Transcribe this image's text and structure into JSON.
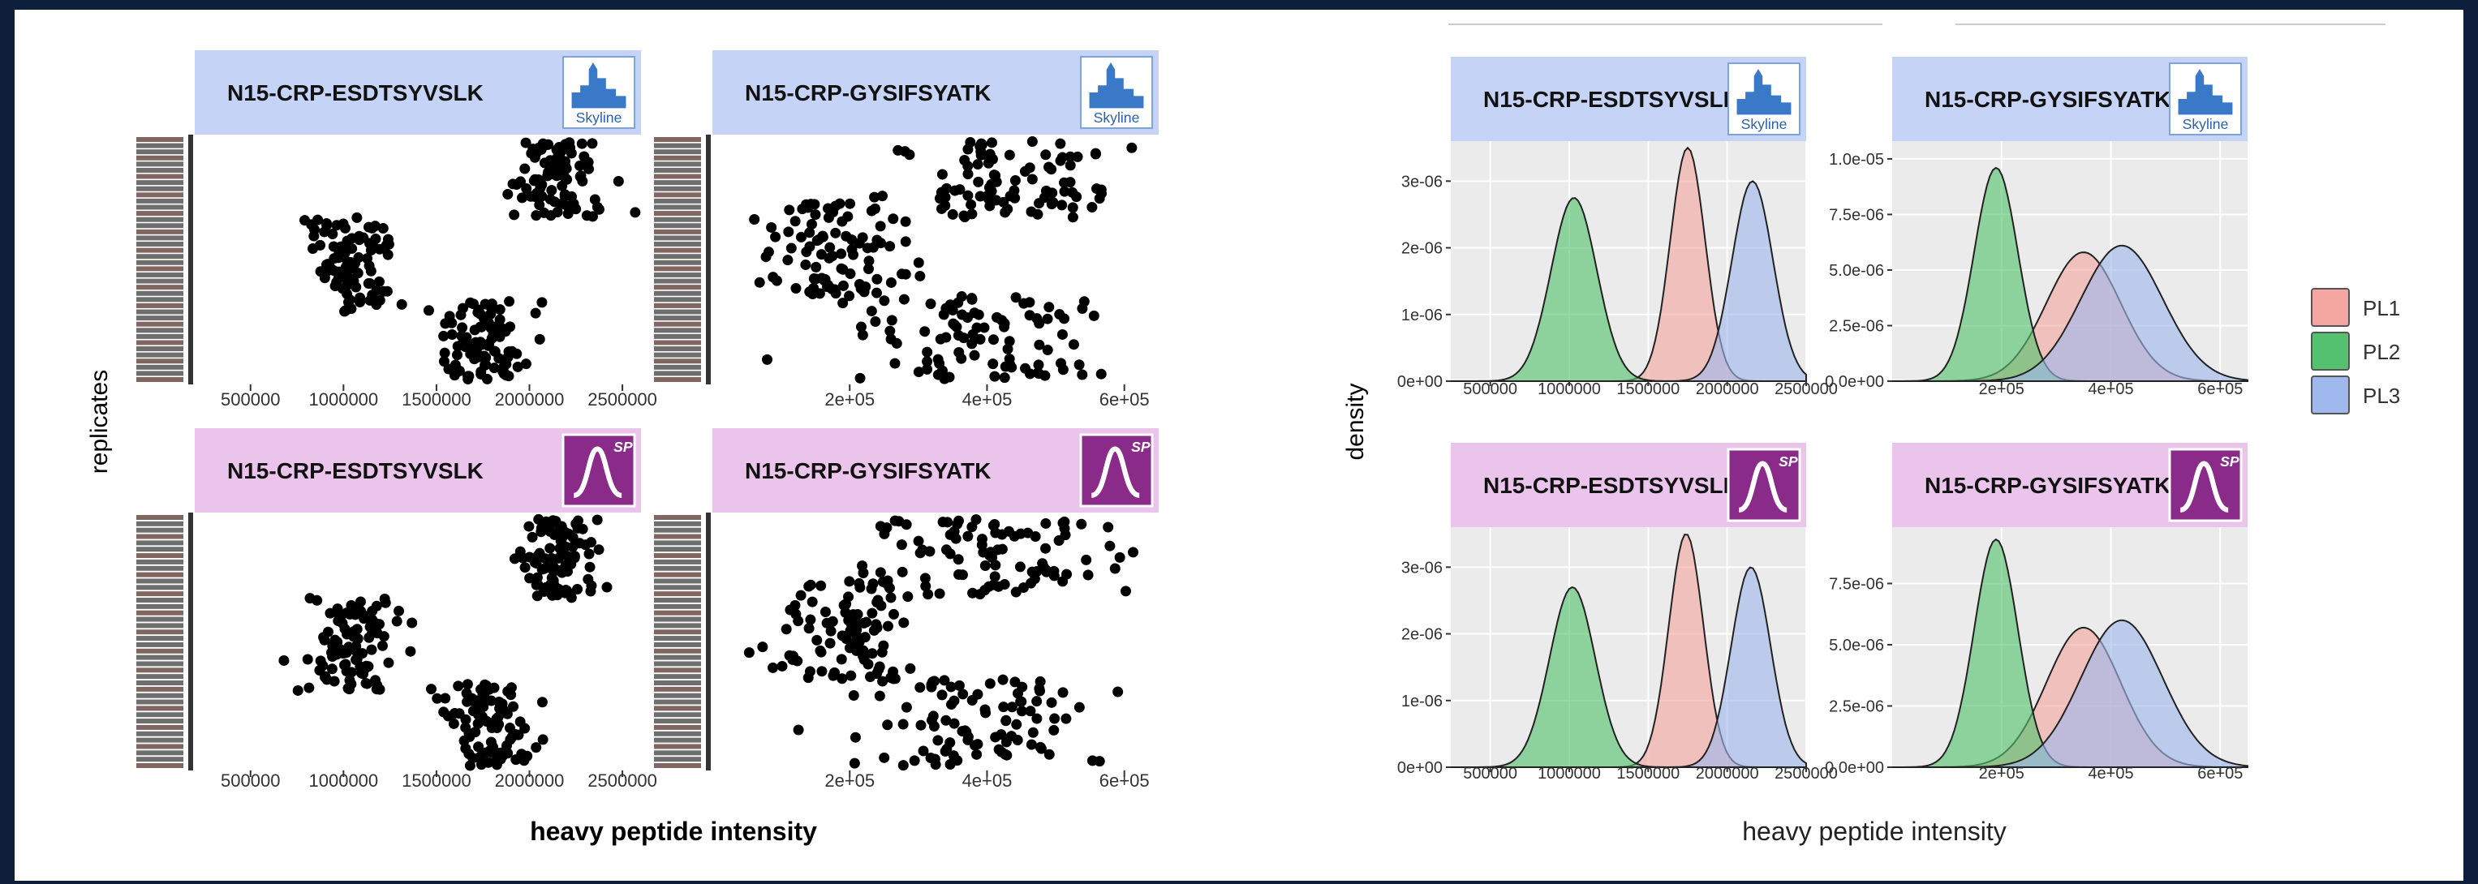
{
  "colors": {
    "frame": "#0d1f3a",
    "strip_blue": "#c5d3f6",
    "strip_pink": "#eac4ea",
    "panel_bg": "#ebebeb",
    "grid": "#ffffff",
    "pl1": "#f4a6a0",
    "pl2": "#54c16e",
    "pl3": "#9fb8ee",
    "points": "#000000",
    "skyline_icon": "#3a78c8",
    "sp_icon": "#8a2b8a"
  },
  "left_figure": {
    "ylabel": "replicates",
    "xlabel": "heavy peptide intensity"
  },
  "right_figure": {
    "ylabel": "density",
    "xlabel": "heavy peptide intensity"
  },
  "legend": {
    "items": [
      {
        "label": "PL1",
        "color": "#f4a6a0"
      },
      {
        "label": "PL2",
        "color": "#54c16e"
      },
      {
        "label": "PL3",
        "color": "#9fb8ee"
      }
    ]
  },
  "icons": {
    "skyline_label": "Skyline",
    "sp_label": "SP"
  },
  "chart_data": [
    {
      "type": "scatter",
      "panel": "left-top-left",
      "title": "N15-CRP-ESDTSYVSLK",
      "icon": "skyline-icon",
      "xticks": [
        "500000",
        "1000000",
        "1500000",
        "2000000",
        "2500000"
      ],
      "xlim": [
        200000,
        2600000
      ],
      "clusters": [
        {
          "group": "PL2",
          "x_center": 1050000,
          "x_spread": 130000,
          "y_range": [
            0.28,
            0.68
          ]
        },
        {
          "group": "PL1",
          "x_center": 1750000,
          "x_spread": 120000,
          "y_range": [
            0.0,
            0.33
          ]
        },
        {
          "group": "PL3",
          "x_center": 2150000,
          "x_spread": 110000,
          "y_range": [
            0.68,
            1.0
          ]
        }
      ]
    },
    {
      "type": "scatter",
      "panel": "left-top-right",
      "title": "N15-CRP-GYSIFSYATK",
      "icon": "skyline-icon",
      "xticks": [
        "2e+05",
        "4e+05",
        "6e+05"
      ],
      "xlim": [
        0,
        650000
      ],
      "clusters": [
        {
          "group": "PL2",
          "x_center": 190000,
          "x_spread": 55000,
          "y_range": [
            0.35,
            0.75
          ]
        },
        {
          "group": "PL1",
          "x_center": 380000,
          "x_spread": 90000,
          "y_range": [
            0.0,
            0.35
          ]
        },
        {
          "group": "PL3",
          "x_center": 420000,
          "x_spread": 90000,
          "y_range": [
            0.68,
            1.0
          ]
        }
      ]
    },
    {
      "type": "scatter",
      "panel": "left-bottom-left",
      "title": "N15-CRP-ESDTSYVSLK",
      "icon": "sp-icon",
      "xticks": [
        "500000",
        "1000000",
        "1500000",
        "2000000",
        "2500000"
      ],
      "xlim": [
        200000,
        2600000
      ],
      "clusters": [
        {
          "group": "PL2",
          "x_center": 1050000,
          "x_spread": 130000,
          "y_range": [
            0.3,
            0.68
          ]
        },
        {
          "group": "PL1",
          "x_center": 1750000,
          "x_spread": 120000,
          "y_range": [
            0.0,
            0.33
          ]
        },
        {
          "group": "PL3",
          "x_center": 2150000,
          "x_spread": 110000,
          "y_range": [
            0.68,
            1.0
          ]
        }
      ]
    },
    {
      "type": "scatter",
      "panel": "left-bottom-right",
      "title": "N15-CRP-GYSIFSYATK",
      "icon": "sp-icon",
      "xticks": [
        "2e+05",
        "4e+05",
        "6e+05"
      ],
      "xlim": [
        0,
        650000
      ],
      "clusters": [
        {
          "group": "PL2",
          "x_center": 190000,
          "x_spread": 55000,
          "y_range": [
            0.35,
            0.75
          ]
        },
        {
          "group": "PL1",
          "x_center": 380000,
          "x_spread": 90000,
          "y_range": [
            0.0,
            0.35
          ]
        },
        {
          "group": "PL3",
          "x_center": 420000,
          "x_spread": 90000,
          "y_range": [
            0.68,
            1.0
          ]
        }
      ]
    },
    {
      "type": "area",
      "panel": "right-top-left",
      "title": "N15-CRP-ESDTSYVSLK",
      "icon": "skyline-icon",
      "xticks": [
        "500000",
        "1000000",
        "1500000",
        "2000000",
        "2500000"
      ],
      "yticks": [
        "0e+00",
        "1e-06",
        "2e-06",
        "3e-06"
      ],
      "xlim": [
        250000,
        2500000
      ],
      "ylim": [
        0,
        3.6e-06
      ],
      "series": [
        {
          "name": "PL1",
          "mean": 1750000,
          "sd": 110000,
          "peak": 3.5e-06
        },
        {
          "name": "PL2",
          "mean": 1030000,
          "sd": 145000,
          "peak": 2.75e-06
        },
        {
          "name": "PL3",
          "mean": 2160000,
          "sd": 130000,
          "peak": 3e-06
        }
      ]
    },
    {
      "type": "area",
      "panel": "right-top-right",
      "title": "N15-CRP-GYSIFSYATK",
      "icon": "skyline-icon",
      "xticks": [
        "2e+05",
        "4e+05",
        "6e+05"
      ],
      "yticks": [
        "0.0e+00",
        "2.5e-06",
        "5.0e-06",
        "7.5e-06",
        "1.0e-05"
      ],
      "xlim": [
        0,
        650000
      ],
      "ylim": [
        0,
        1.08e-05
      ],
      "series": [
        {
          "name": "PL1",
          "mean": 350000,
          "sd": 68000,
          "peak": 5.8e-06
        },
        {
          "name": "PL2",
          "mean": 190000,
          "sd": 40000,
          "peak": 9.6e-06
        },
        {
          "name": "PL3",
          "mean": 420000,
          "sd": 75000,
          "peak": 6.1e-06
        }
      ]
    },
    {
      "type": "area",
      "panel": "right-bottom-left",
      "title": "N15-CRP-ESDTSYVSLK",
      "icon": "sp-icon",
      "xticks": [
        "500000",
        "1000000",
        "1500000",
        "2000000",
        "2500000"
      ],
      "yticks": [
        "0e+00",
        "1e-06",
        "2e-06",
        "3e-06"
      ],
      "xlim": [
        250000,
        2500000
      ],
      "ylim": [
        0,
        3.6e-06
      ],
      "series": [
        {
          "name": "PL1",
          "mean": 1740000,
          "sd": 110000,
          "peak": 3.5e-06
        },
        {
          "name": "PL2",
          "mean": 1020000,
          "sd": 145000,
          "peak": 2.7e-06
        },
        {
          "name": "PL3",
          "mean": 2150000,
          "sd": 125000,
          "peak": 3e-06
        }
      ]
    },
    {
      "type": "area",
      "panel": "right-bottom-right",
      "title": "N15-CRP-GYSIFSYATK",
      "icon": "sp-icon",
      "xticks": [
        "2e+05",
        "4e+05",
        "6e+05"
      ],
      "yticks": [
        "0.0e+00",
        "2.5e-06",
        "5.0e-06",
        "7.5e-06"
      ],
      "xlim": [
        0,
        650000
      ],
      "ylim": [
        0,
        9.8e-06
      ],
      "series": [
        {
          "name": "PL1",
          "mean": 350000,
          "sd": 68000,
          "peak": 5.7e-06
        },
        {
          "name": "PL2",
          "mean": 190000,
          "sd": 40000,
          "peak": 9.3e-06
        },
        {
          "name": "PL3",
          "mean": 420000,
          "sd": 75000,
          "peak": 6e-06
        }
      ]
    }
  ]
}
